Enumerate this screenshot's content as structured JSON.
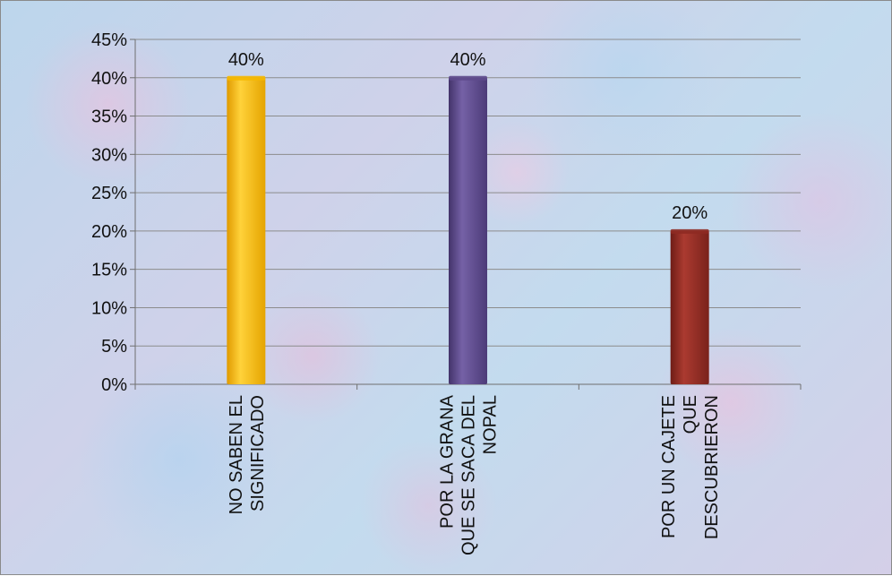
{
  "chart_data": {
    "type": "bar",
    "categories": [
      [
        "NO SABEN EL",
        "SIGNIFICADO"
      ],
      [
        "POR LA GRANA",
        "QUE SE SACA DEL",
        "NOPAL"
      ],
      [
        "POR UN CAJETE",
        "QUE",
        "DESCUBRIERON"
      ]
    ],
    "values": [
      40,
      40,
      20
    ],
    "data_labels": [
      "40%",
      "40%",
      "20%"
    ],
    "colors": [
      "#f5b800",
      "#5e4a8c",
      "#8e2a22"
    ],
    "ylim": [
      0,
      45
    ],
    "ytick_step": 5,
    "ytick_suffix": "%",
    "title": "",
    "xlabel": "",
    "ylabel": "",
    "grid": true,
    "legend": "none"
  }
}
